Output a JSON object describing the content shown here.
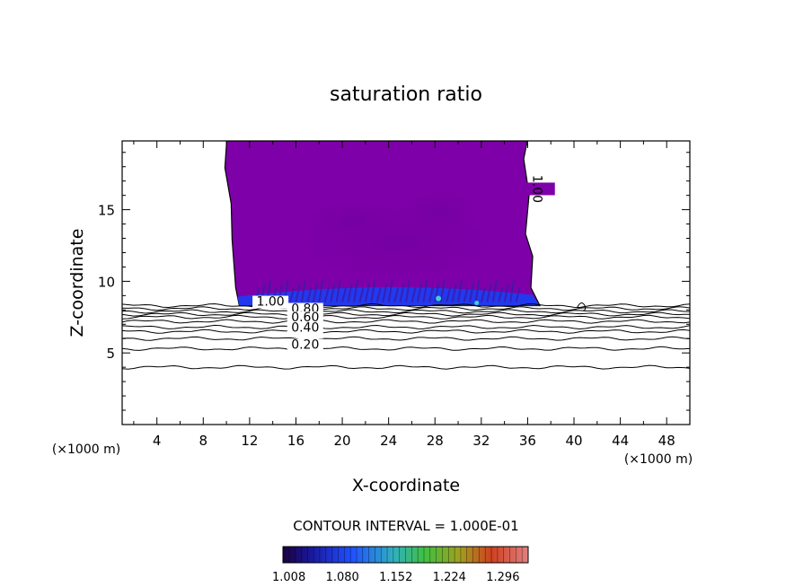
{
  "chart_data": {
    "type": "heatmap",
    "title": "saturation ratio",
    "xlabel": "X-coordinate",
    "ylabel": "Z-coordinate",
    "x_unit_left": "(×1000 m)",
    "x_unit_right": "(×1000 m)",
    "xlim": [
      1,
      50
    ],
    "ylim": [
      0,
      19.8
    ],
    "x_ticks": [
      "4",
      "8",
      "12",
      "16",
      "20",
      "24",
      "28",
      "32",
      "36",
      "40",
      "44",
      "48"
    ],
    "y_ticks": [
      "5",
      "10",
      "15"
    ],
    "contour_interval_text": "CONTOUR INTERVAL = 1.000E-01",
    "colorbar_labels": [
      "1.008",
      "1.080",
      "1.152",
      "1.224",
      "1.296"
    ],
    "colorbar_range": [
      1.0,
      1.33
    ],
    "contour_labels": [
      {
        "text": "1.00",
        "x": 13.8,
        "z": 8.3
      },
      {
        "text": "0.80",
        "x": 16.8,
        "z": 7.8
      },
      {
        "text": "0.60",
        "x": 16.8,
        "z": 7.2
      },
      {
        "text": "0.40",
        "x": 16.8,
        "z": 6.5
      },
      {
        "text": "0.20",
        "x": 16.8,
        "z": 5.3
      },
      {
        "text": "1.00",
        "x": 36.8,
        "z": 16.2
      }
    ],
    "supersaturated_region": {
      "x_range": [
        10.8,
        36.9
      ],
      "z_range": [
        8.3,
        19.8
      ]
    },
    "colors": {
      "cloud": "#7e00a8",
      "cloud_base": "#1e3cf0",
      "contour": "#000000"
    }
  }
}
